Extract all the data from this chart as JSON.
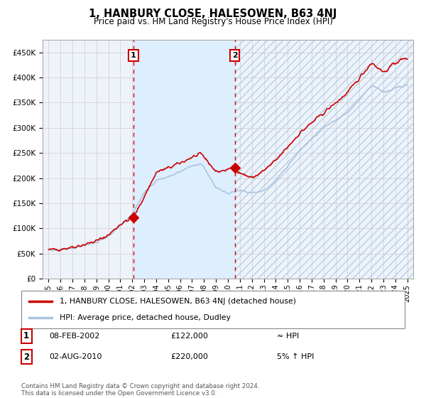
{
  "title": "1, HANBURY CLOSE, HALESOWEN, B63 4NJ",
  "subtitle": "Price paid vs. HM Land Registry's House Price Index (HPI)",
  "legend_line1": "1, HANBURY CLOSE, HALESOWEN, B63 4NJ (detached house)",
  "legend_line2": "HPI: Average price, detached house, Dudley",
  "transaction1_date": "08-FEB-2002",
  "transaction1_price": 122000,
  "transaction1_hpi": "≈ HPI",
  "transaction2_date": "02-AUG-2010",
  "transaction2_price": 220000,
  "transaction2_hpi": "5% ↑ HPI",
  "footer": "Contains HM Land Registry data © Crown copyright and database right 2024.\nThis data is licensed under the Open Government Licence v3.0.",
  "hpi_line_color": "#aac4e0",
  "price_line_color": "#cc0000",
  "dashed_vline_color": "#cc0000",
  "shade_color": "#ddeeff",
  "marker_color": "#cc0000",
  "grid_color": "#cccccc",
  "background_color": "#ffffff",
  "plot_bg_color": "#eef3fa",
  "ylim": [
    0,
    475000
  ],
  "yticks": [
    0,
    50000,
    100000,
    150000,
    200000,
    250000,
    300000,
    350000,
    400000,
    450000
  ],
  "ytick_labels": [
    "£0",
    "£50K",
    "£100K",
    "£150K",
    "£200K",
    "£250K",
    "£300K",
    "£350K",
    "£400K",
    "£450K"
  ],
  "transaction1_x": 2002.1,
  "transaction2_x": 2010.58
}
